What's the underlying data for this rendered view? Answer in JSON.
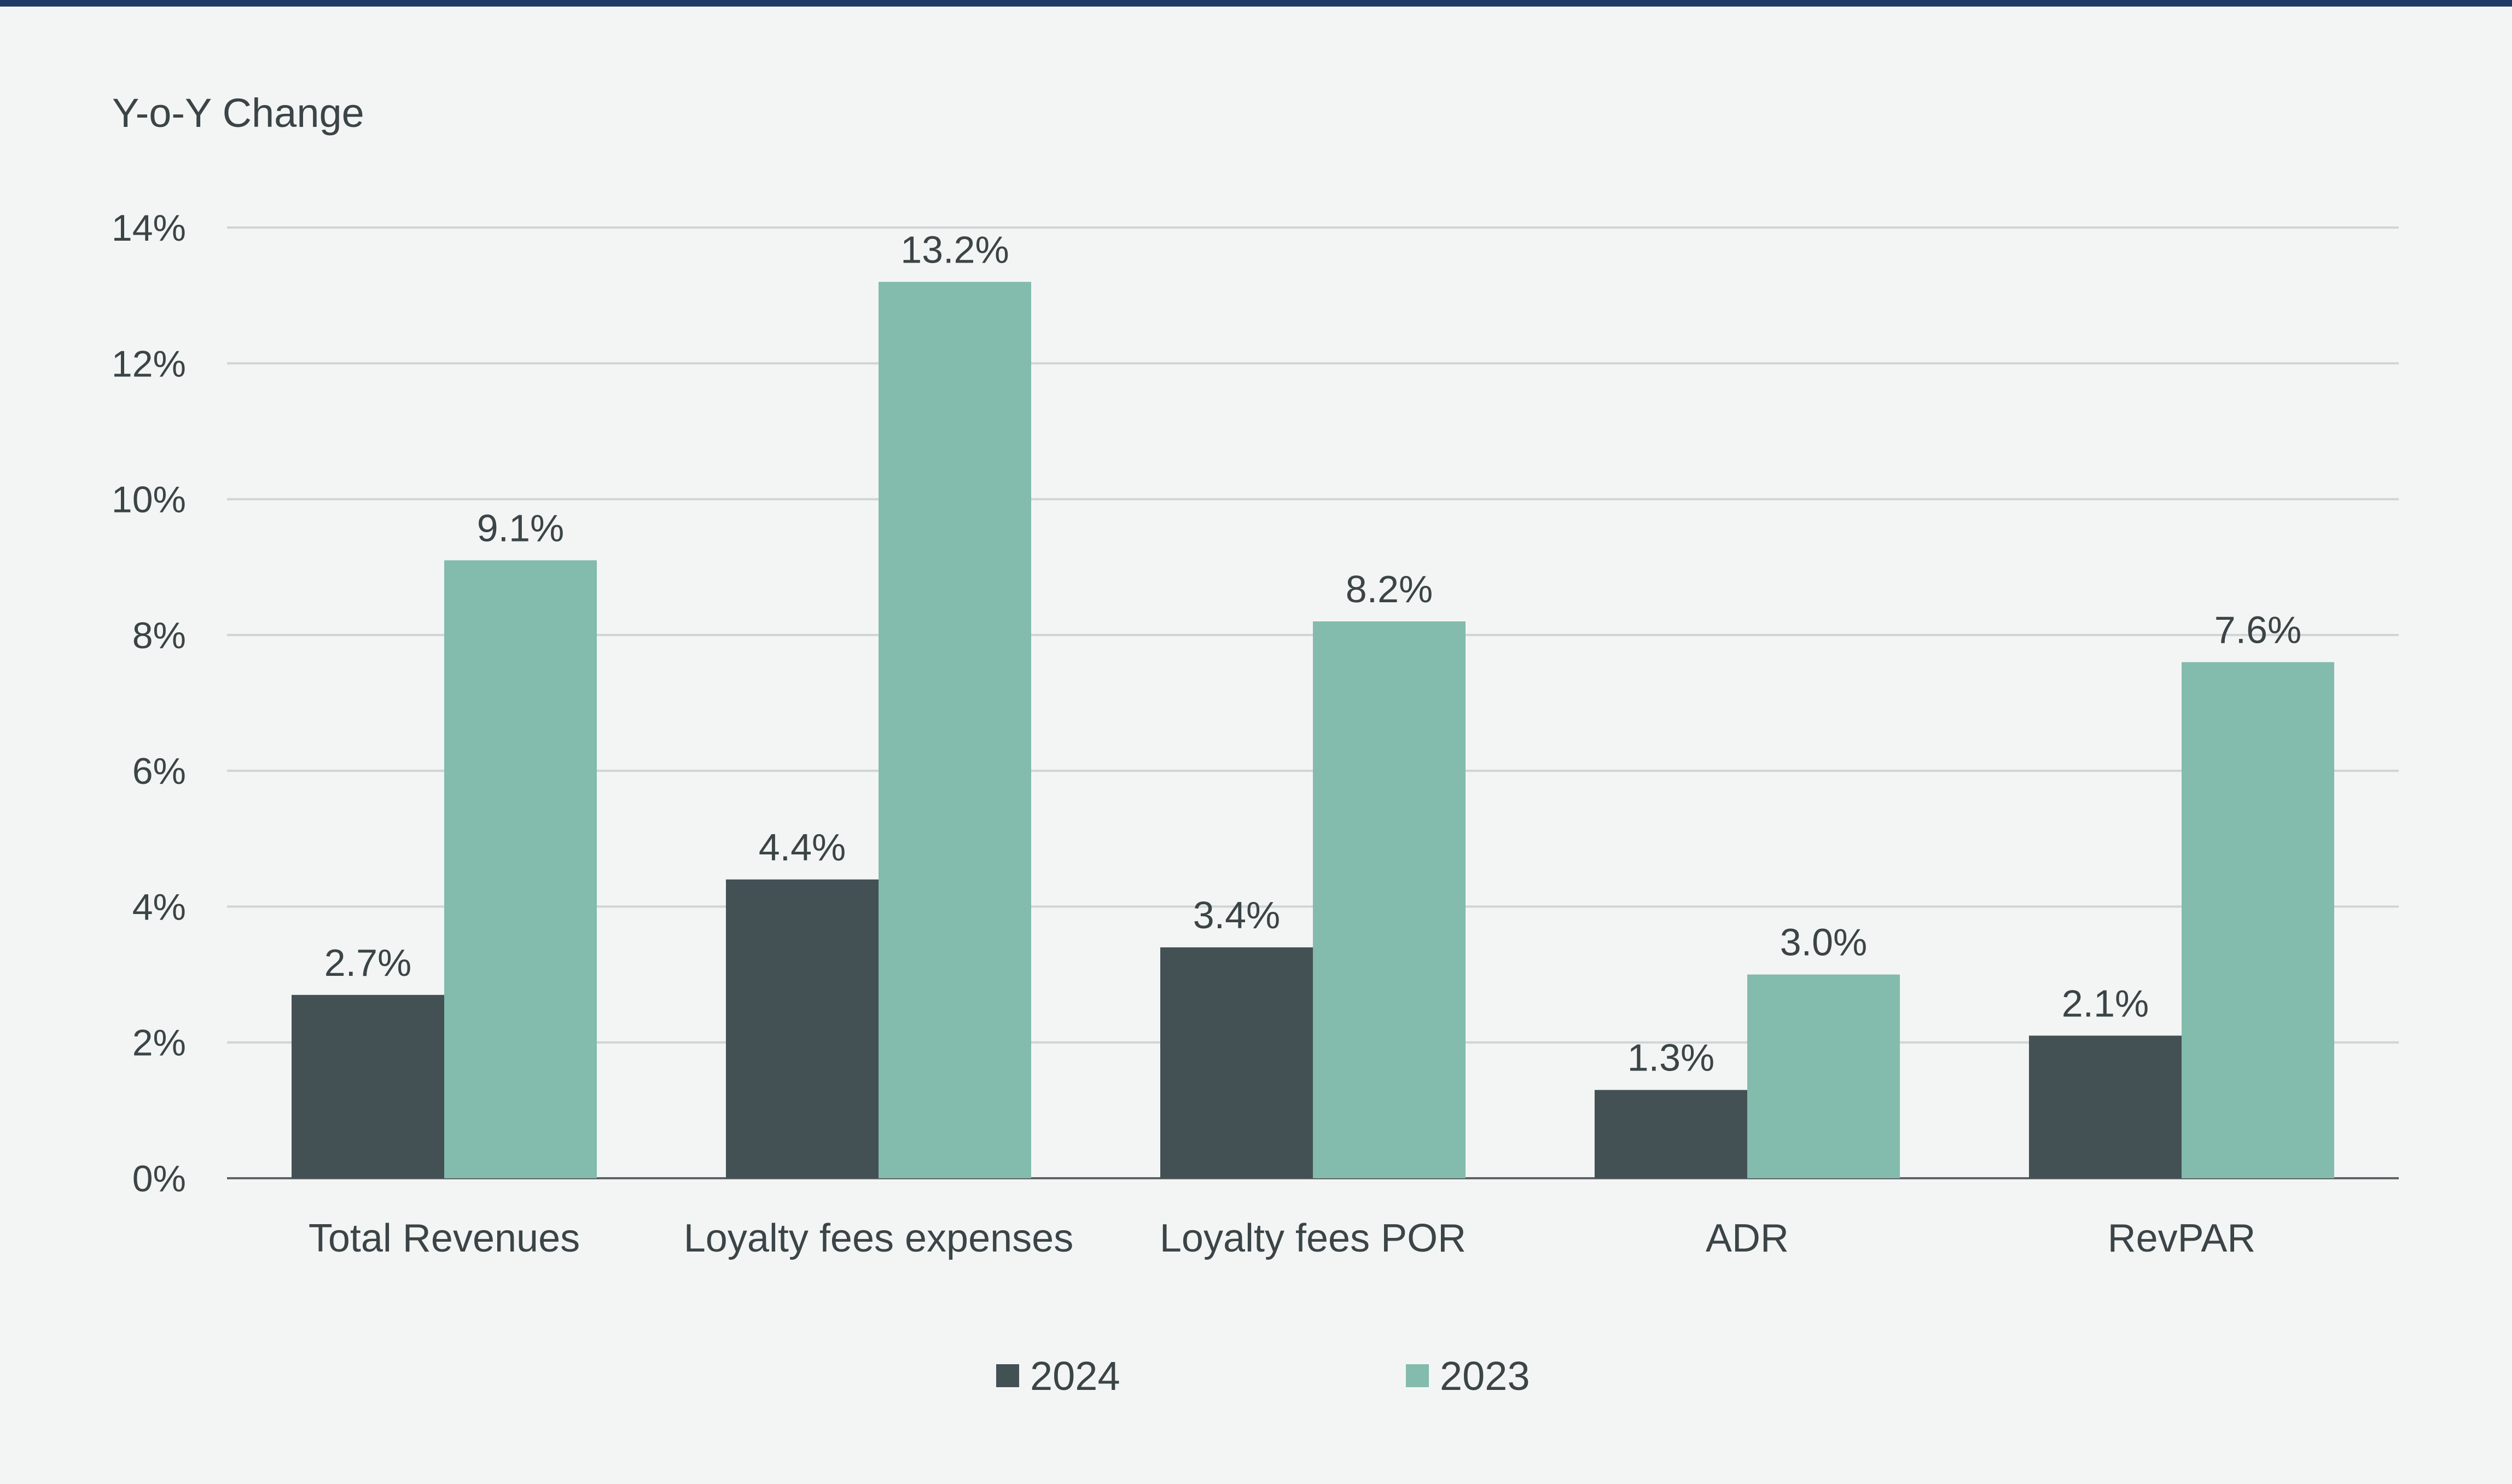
{
  "colors": {
    "background": "#f3f5f4",
    "top_rule": "#1f3a64",
    "grid": "#cfd4d4",
    "axis": "#5b6466",
    "text": "#3b4446",
    "series_2024": "#435155",
    "series_2023": "#83bbad"
  },
  "chart_data": {
    "type": "bar",
    "title": "",
    "xlabel": "",
    "ylabel": "Y-o-Y Change",
    "ylim": [
      0,
      14
    ],
    "yticks": [
      "0%",
      "2%",
      "4%",
      "6%",
      "8%",
      "10%",
      "12%",
      "14%"
    ],
    "grid": true,
    "legend_position": "bottom-center",
    "categories": [
      "Total Revenues",
      "Loyalty fees expenses",
      "Loyalty fees POR",
      "ADR",
      "RevPAR"
    ],
    "series": [
      {
        "name": "2024",
        "values": [
          2.7,
          4.4,
          3.4,
          1.3,
          2.1
        ],
        "labels": [
          "2.7%",
          "4.4%",
          "3.4%",
          "1.3%",
          "2.1%"
        ]
      },
      {
        "name": "2023",
        "values": [
          9.1,
          13.2,
          8.2,
          3.0,
          7.6
        ],
        "labels": [
          "9.1%",
          "13.2%",
          "8.2%",
          "3.0%",
          "7.6%"
        ]
      }
    ]
  }
}
